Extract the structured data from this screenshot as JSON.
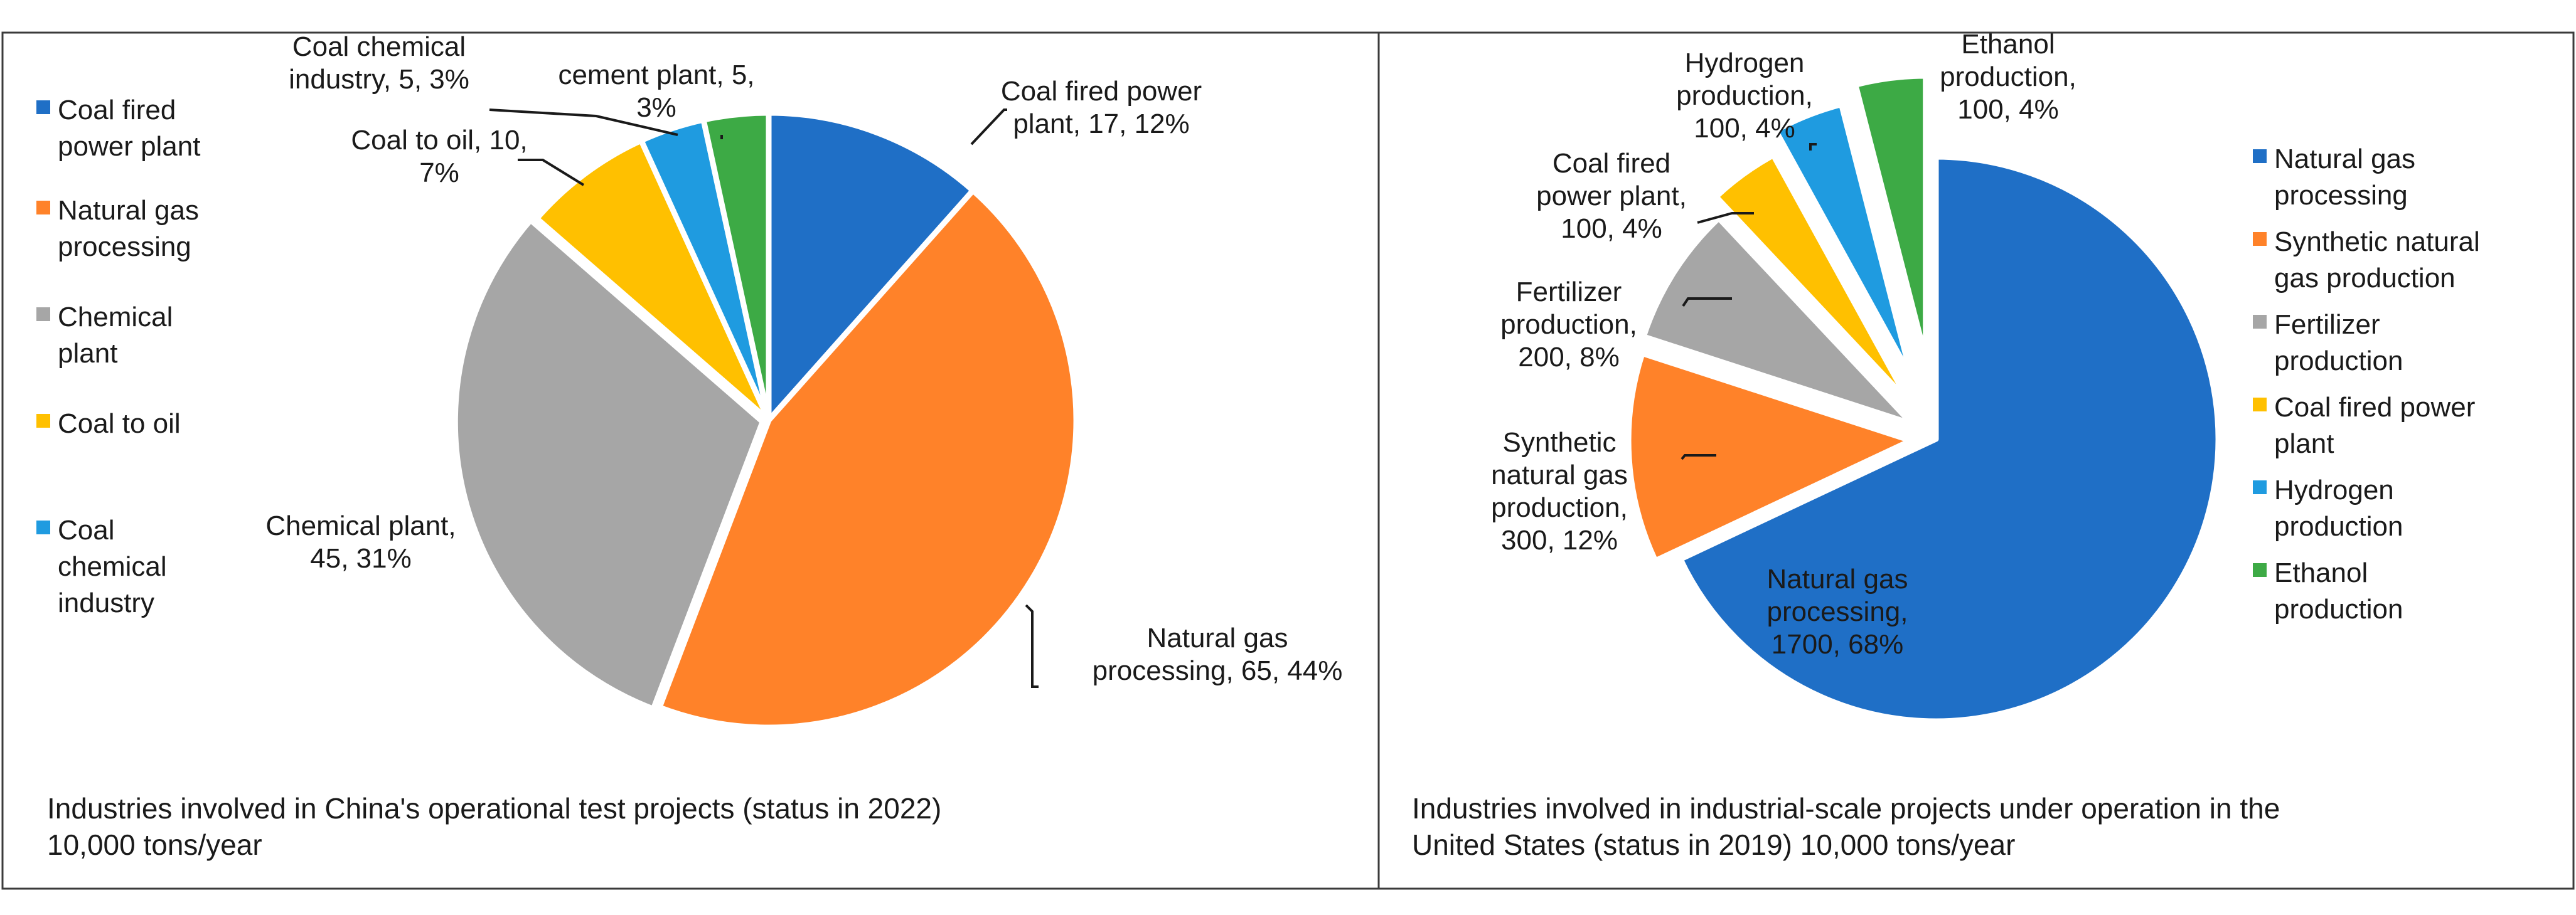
{
  "chart_data": [
    {
      "type": "pie",
      "caption_lines": [
        "Industries involved in China's operational test projects (status in 2022)",
        "10,000 tons/year"
      ],
      "slices": [
        {
          "name": "Coal fired power plant",
          "value": 17,
          "percent": "12%",
          "color": "#1F6FC6",
          "label_lines": [
            "Coal fired power",
            "plant, 17, 12%"
          ]
        },
        {
          "name": "Natural gas processing",
          "value": 65,
          "percent": "44%",
          "color": "#FF8229",
          "label_lines": [
            "Natural gas",
            "processing, 65, 44%"
          ]
        },
        {
          "name": "Chemical plant",
          "value": 45,
          "percent": "31%",
          "color": "#A6A6A6",
          "label_lines": [
            "Chemical plant,",
            "45, 31%"
          ]
        },
        {
          "name": "Coal to oil",
          "value": 10,
          "percent": "7%",
          "color": "#FFC000",
          "label_lines": [
            "Coal to oil, 10,",
            "7%"
          ]
        },
        {
          "name": "Coal chemical industry",
          "value": 5,
          "percent": "3%",
          "color": "#1F9BE0",
          "label_lines": [
            "Coal chemical",
            "industry, 5, 3%"
          ]
        },
        {
          "name": "cement plant",
          "value": 5,
          "percent": "3%",
          "color": "#3DAA45",
          "label_lines": [
            "cement plant, 5,",
            "3%"
          ]
        }
      ],
      "legend": [
        {
          "lines": [
            "Coal fired",
            "power plant"
          ],
          "color": "#1F6FC6"
        },
        {
          "lines": [
            "Natural gas",
            "processing"
          ],
          "color": "#FF8229"
        },
        {
          "lines": [
            "Chemical",
            "plant"
          ],
          "color": "#A6A6A6"
        },
        {
          "lines": [
            "Coal to oil"
          ],
          "color": "#FFC000"
        },
        {
          "lines": [
            "Coal",
            "chemical",
            "industry"
          ],
          "color": "#1F9BE0"
        }
      ]
    },
    {
      "type": "pie",
      "caption_lines": [
        "Industries involved in industrial-scale projects under operation in the",
        "United States (status in 2019) 10,000 tons/year"
      ],
      "slices": [
        {
          "name": "Natural gas processing",
          "value": 1700,
          "percent": "68%",
          "color": "#1F6FC6",
          "label_lines": [
            "Natural gas",
            "processing,",
            "1700, 68%"
          ]
        },
        {
          "name": "Synthetic natural gas production",
          "value": 300,
          "percent": "12%",
          "color": "#FF8229",
          "label_lines": [
            "Synthetic",
            "natural gas",
            "production,",
            "300, 12%"
          ]
        },
        {
          "name": "Fertilizer production",
          "value": 200,
          "percent": "8%",
          "color": "#A6A6A6",
          "label_lines": [
            "Fertilizer",
            "production,",
            "200, 8%"
          ]
        },
        {
          "name": "Coal fired power plant",
          "value": 100,
          "percent": "4%",
          "color": "#FFC000",
          "label_lines": [
            "Coal fired",
            "power plant,",
            "100, 4%"
          ]
        },
        {
          "name": "Hydrogen production",
          "value": 100,
          "percent": "4%",
          "color": "#1F9BE0",
          "label_lines": [
            "Hydrogen",
            "production,",
            "100, 4%"
          ]
        },
        {
          "name": "Ethanol production",
          "value": 100,
          "percent": "4%",
          "color": "#3DAA45",
          "label_lines": [
            "Ethanol",
            "production,",
            "100, 4%"
          ]
        }
      ],
      "legend": [
        {
          "lines": [
            "Natural gas",
            "processing"
          ],
          "color": "#1F6FC6"
        },
        {
          "lines": [
            "Synthetic natural",
            "gas production"
          ],
          "color": "#FF8229"
        },
        {
          "lines": [
            "Fertilizer",
            "production"
          ],
          "color": "#A6A6A6"
        },
        {
          "lines": [
            "Coal fired power",
            "plant"
          ],
          "color": "#FFC000"
        },
        {
          "lines": [
            "Hydrogen",
            "production"
          ],
          "color": "#1F9BE0"
        },
        {
          "lines": [
            "Ethanol",
            "production"
          ],
          "color": "#3DAA45"
        }
      ]
    }
  ]
}
